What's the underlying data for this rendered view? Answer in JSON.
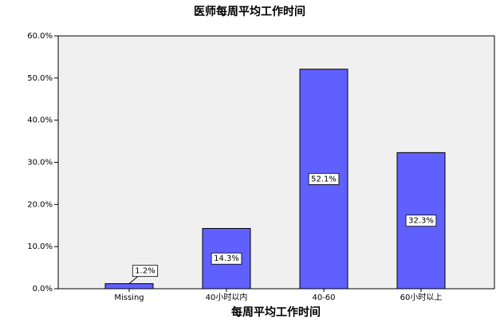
{
  "chart_data": {
    "type": "bar",
    "title": "医师每周平均工作时间",
    "x_label": "每周平均工作时间",
    "categories": [
      "Missing",
      "40小时以内",
      "40-60",
      "60小时以上"
    ],
    "values": [
      1.2,
      14.3,
      52.1,
      32.3
    ],
    "value_labels": [
      "1.2%",
      "14.3%",
      "52.1%",
      "32.3%"
    ],
    "color": "#6060ff",
    "ylim": [
      0,
      60
    ],
    "yticks": [
      {
        "value": 0,
        "label": "0.0%"
      },
      {
        "value": 10,
        "label": "10.0%"
      },
      {
        "value": 20,
        "label": "20.0%"
      },
      {
        "value": 30,
        "label": "30.0%"
      },
      {
        "value": 40,
        "label": "40.0%"
      },
      {
        "value": 50,
        "label": "50.0%"
      },
      {
        "value": 60,
        "label": "60.0%"
      }
    ]
  }
}
